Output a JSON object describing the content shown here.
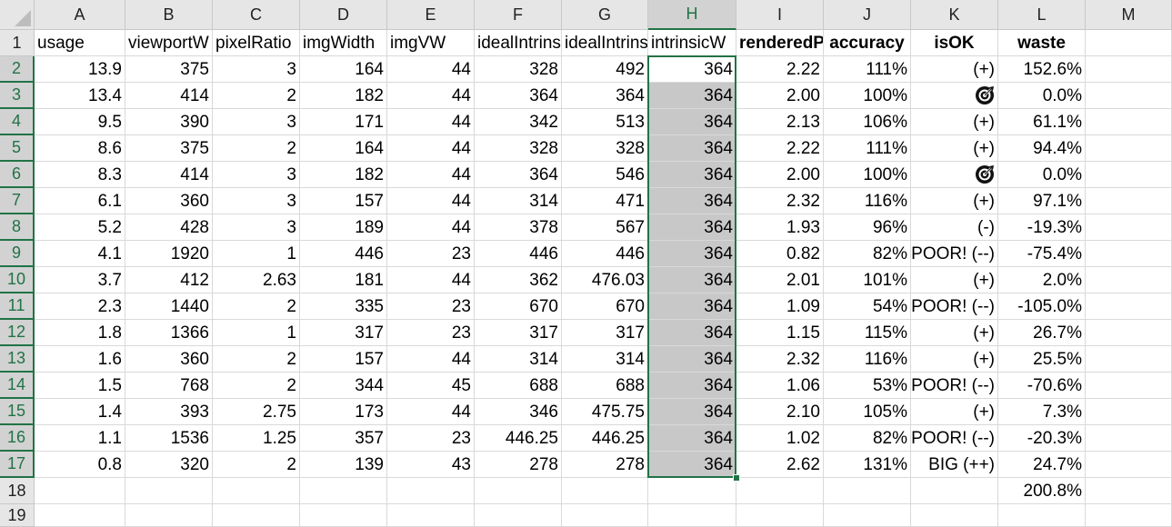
{
  "sheet": {
    "columns": [
      "A",
      "B",
      "C",
      "D",
      "E",
      "F",
      "G",
      "H",
      "I",
      "J",
      "K",
      "L",
      "M"
    ],
    "selected_column": "H",
    "rows": [
      {
        "num": "1",
        "cells": [
          "usage",
          "viewportW",
          "pixelRatio",
          "imgWidth",
          "imgVW",
          "idealIntrinsic",
          "idealIntrinsic",
          "intrinsicW",
          "renderedPxr",
          "accuracy",
          "isOK",
          "waste",
          ""
        ]
      },
      {
        "num": "2",
        "cells": [
          "13.9",
          "375",
          "3",
          "164",
          "44",
          "328",
          "492",
          "364",
          "2.22",
          "111%",
          "(+)",
          "152.6%",
          ""
        ]
      },
      {
        "num": "3",
        "cells": [
          "13.4",
          "414",
          "2",
          "182",
          "44",
          "364",
          "364",
          "364",
          "2.00",
          "100%",
          "target",
          "0.0%",
          ""
        ]
      },
      {
        "num": "4",
        "cells": [
          "9.5",
          "390",
          "3",
          "171",
          "44",
          "342",
          "513",
          "364",
          "2.13",
          "106%",
          "(+)",
          "61.1%",
          ""
        ]
      },
      {
        "num": "5",
        "cells": [
          "8.6",
          "375",
          "2",
          "164",
          "44",
          "328",
          "328",
          "364",
          "2.22",
          "111%",
          "(+)",
          "94.4%",
          ""
        ]
      },
      {
        "num": "6",
        "cells": [
          "8.3",
          "414",
          "3",
          "182",
          "44",
          "364",
          "546",
          "364",
          "2.00",
          "100%",
          "target",
          "0.0%",
          ""
        ]
      },
      {
        "num": "7",
        "cells": [
          "6.1",
          "360",
          "3",
          "157",
          "44",
          "314",
          "471",
          "364",
          "2.32",
          "116%",
          "(+)",
          "97.1%",
          ""
        ]
      },
      {
        "num": "8",
        "cells": [
          "5.2",
          "428",
          "3",
          "189",
          "44",
          "378",
          "567",
          "364",
          "1.93",
          "96%",
          "(-)",
          "-19.3%",
          ""
        ]
      },
      {
        "num": "9",
        "cells": [
          "4.1",
          "1920",
          "1",
          "446",
          "23",
          "446",
          "446",
          "364",
          "0.82",
          "82%",
          "POOR! (--)",
          "-75.4%",
          ""
        ]
      },
      {
        "num": "10",
        "cells": [
          "3.7",
          "412",
          "2.63",
          "181",
          "44",
          "362",
          "476.03",
          "364",
          "2.01",
          "101%",
          "(+)",
          "2.0%",
          ""
        ]
      },
      {
        "num": "11",
        "cells": [
          "2.3",
          "1440",
          "2",
          "335",
          "23",
          "670",
          "670",
          "364",
          "1.09",
          "54%",
          "POOR! (--)",
          "-105.0%",
          ""
        ]
      },
      {
        "num": "12",
        "cells": [
          "1.8",
          "1366",
          "1",
          "317",
          "23",
          "317",
          "317",
          "364",
          "1.15",
          "115%",
          "(+)",
          "26.7%",
          ""
        ]
      },
      {
        "num": "13",
        "cells": [
          "1.6",
          "360",
          "2",
          "157",
          "44",
          "314",
          "314",
          "364",
          "2.32",
          "116%",
          "(+)",
          "25.5%",
          ""
        ]
      },
      {
        "num": "14",
        "cells": [
          "1.5",
          "768",
          "2",
          "344",
          "45",
          "688",
          "688",
          "364",
          "1.06",
          "53%",
          "POOR! (--)",
          "-70.6%",
          ""
        ]
      },
      {
        "num": "15",
        "cells": [
          "1.4",
          "393",
          "2.75",
          "173",
          "44",
          "346",
          "475.75",
          "364",
          "2.10",
          "105%",
          "(+)",
          "7.3%",
          ""
        ]
      },
      {
        "num": "16",
        "cells": [
          "1.1",
          "1536",
          "1.25",
          "357",
          "23",
          "446.25",
          "446.25",
          "364",
          "1.02",
          "82%",
          "POOR! (--)",
          "-20.3%",
          ""
        ]
      },
      {
        "num": "17",
        "cells": [
          "0.8",
          "320",
          "2",
          "139",
          "43",
          "278",
          "278",
          "364",
          "2.62",
          "131%",
          "BIG (++)",
          "24.7%",
          ""
        ]
      },
      {
        "num": "18",
        "cells": [
          "",
          "",
          "",
          "",
          "",
          "",
          "",
          "",
          "",
          "",
          "",
          "200.8%",
          ""
        ]
      },
      {
        "num": "19",
        "cells": [
          "",
          "",
          "",
          "",
          "",
          "",
          "",
          "",
          "",
          "",
          "",
          "",
          ""
        ]
      }
    ]
  },
  "colors": {
    "selection": "#217346",
    "header_bg": "#e6e6e6",
    "shade": "#c8c8c8"
  },
  "icons": {
    "target": "target-icon"
  }
}
